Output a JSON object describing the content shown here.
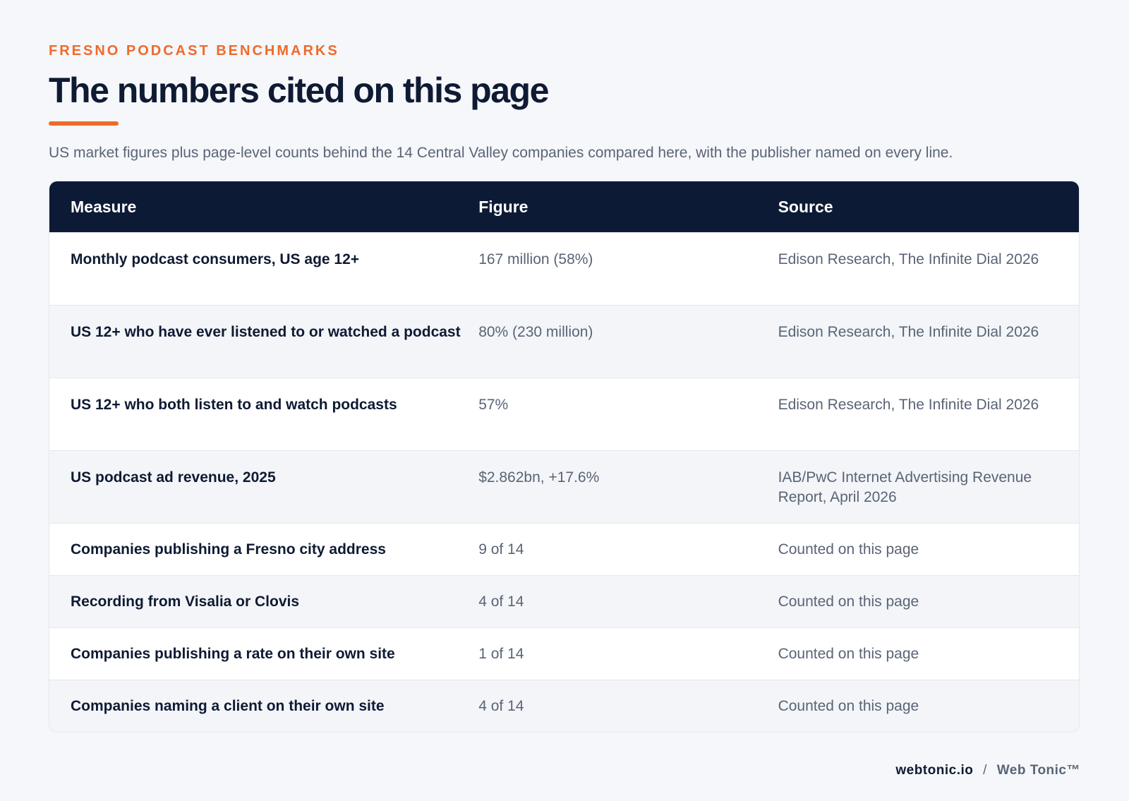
{
  "header": {
    "eyebrow": "FRESNO PODCAST BENCHMARKS",
    "title": "The numbers cited on this page",
    "subtitle": "US market figures plus page-level counts behind the 14 Central Valley companies compared here, with the publisher named on every line."
  },
  "table": {
    "columns": {
      "measure": "Measure",
      "figure": "Figure",
      "source": "Source"
    },
    "rows": [
      {
        "measure": "Monthly podcast consumers, US age 12+",
        "figure": "167 million (58%)",
        "source": "Edison Research, The Infinite Dial 2026"
      },
      {
        "measure": "US 12+ who have ever listened to or watched a podcast",
        "figure": "80% (230 million)",
        "source": "Edison Research, The Infinite Dial 2026"
      },
      {
        "measure": "US 12+ who both listen to and watch podcasts",
        "figure": "57%",
        "source": "Edison Research, The Infinite Dial 2026"
      },
      {
        "measure": "US podcast ad revenue, 2025",
        "figure": "$2.862bn, +17.6%",
        "source": "IAB/PwC Internet Advertising Revenue Report, April 2026"
      },
      {
        "measure": "Companies publishing a Fresno city address",
        "figure": "9 of 14",
        "source": "Counted on this page"
      },
      {
        "measure": "Recording from Visalia or Clovis",
        "figure": "4 of 14",
        "source": "Counted on this page"
      },
      {
        "measure": "Companies publishing a rate on their own site",
        "figure": "1 of 14",
        "source": "Counted on this page"
      },
      {
        "measure": "Companies naming a client on their own site",
        "figure": "4 of 14",
        "source": "Counted on this page"
      }
    ]
  },
  "footer": {
    "domain": "webtonic.io",
    "separator": "/",
    "brand": "Web Tonic™"
  },
  "colors": {
    "accent": "#ef6a2b",
    "header_bg": "#0d1a35",
    "text_dark": "#0f1a33",
    "text_muted": "#5a6476"
  }
}
